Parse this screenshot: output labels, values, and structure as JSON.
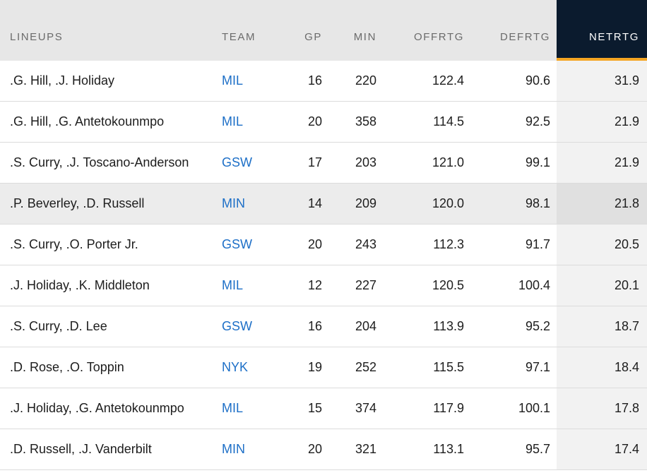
{
  "columns": {
    "lineups": "LINEUPS",
    "team": "TEAM",
    "gp": "GP",
    "min": "MIN",
    "offrtg": "OFFRTG",
    "defrtg": "DEFRTG",
    "netrtg": "NETRTG"
  },
  "colors": {
    "header_bg": "#e7e7e7",
    "active_header_bg": "#0b1b2e",
    "active_header_accent": "#f5a623",
    "team_link": "#1d6fc7"
  },
  "rows": [
    {
      "lineup": ".G. Hill, .J. Holiday",
      "team": "MIL",
      "gp": "16",
      "min": "220",
      "offrtg": "122.4",
      "defrtg": "90.6",
      "netrtg": "31.9"
    },
    {
      "lineup": ".G. Hill, .G. Antetokounmpo",
      "team": "MIL",
      "gp": "20",
      "min": "358",
      "offrtg": "114.5",
      "defrtg": "92.5",
      "netrtg": "21.9"
    },
    {
      "lineup": ".S. Curry, .J. Toscano-Anderson",
      "team": "GSW",
      "gp": "17",
      "min": "203",
      "offrtg": "121.0",
      "defrtg": "99.1",
      "netrtg": "21.9"
    },
    {
      "lineup": ".P. Beverley, .D. Russell",
      "team": "MIN",
      "gp": "14",
      "min": "209",
      "offrtg": "120.0",
      "defrtg": "98.1",
      "netrtg": "21.8"
    },
    {
      "lineup": ".S. Curry, .O. Porter Jr.",
      "team": "GSW",
      "gp": "20",
      "min": "243",
      "offrtg": "112.3",
      "defrtg": "91.7",
      "netrtg": "20.5"
    },
    {
      "lineup": ".J. Holiday, .K. Middleton",
      "team": "MIL",
      "gp": "12",
      "min": "227",
      "offrtg": "120.5",
      "defrtg": "100.4",
      "netrtg": "20.1"
    },
    {
      "lineup": ".S. Curry, .D. Lee",
      "team": "GSW",
      "gp": "16",
      "min": "204",
      "offrtg": "113.9",
      "defrtg": "95.2",
      "netrtg": "18.7"
    },
    {
      "lineup": ".D. Rose, .O. Toppin",
      "team": "NYK",
      "gp": "19",
      "min": "252",
      "offrtg": "115.5",
      "defrtg": "97.1",
      "netrtg": "18.4"
    },
    {
      "lineup": ".J. Holiday, .G. Antetokounmpo",
      "team": "MIL",
      "gp": "15",
      "min": "374",
      "offrtg": "117.9",
      "defrtg": "100.1",
      "netrtg": "17.8"
    },
    {
      "lineup": ".D. Russell, .J. Vanderbilt",
      "team": "MIN",
      "gp": "20",
      "min": "321",
      "offrtg": "113.1",
      "defrtg": "95.7",
      "netrtg": "17.4"
    }
  ]
}
